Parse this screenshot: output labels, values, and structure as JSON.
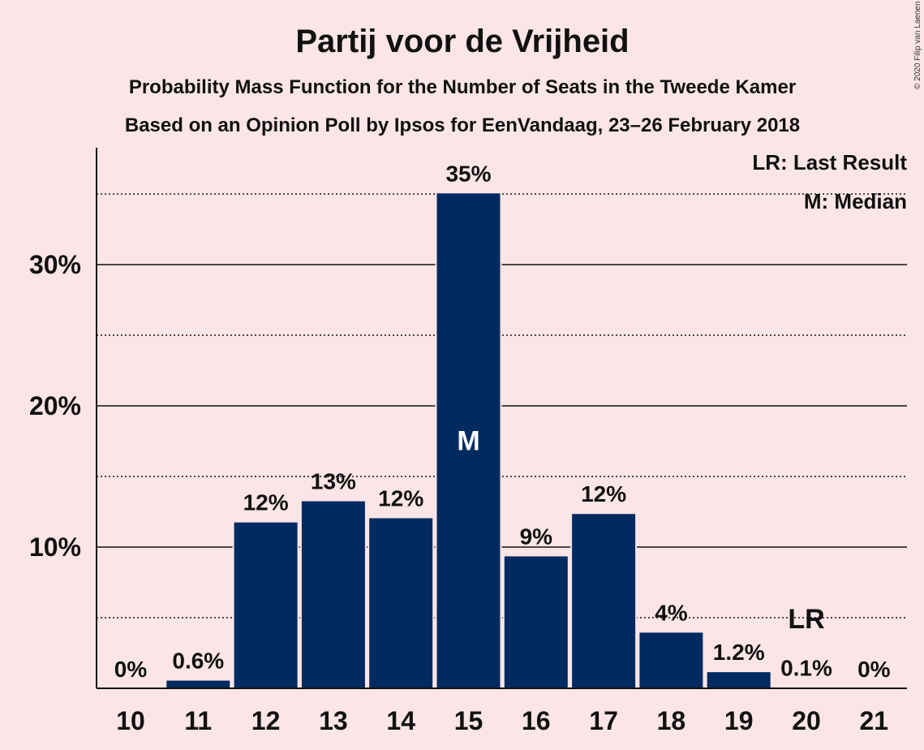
{
  "chart_data": {
    "type": "bar",
    "title": "Partij voor de Vrijheid",
    "subtitle": "Probability Mass Function for the Number of Seats in the Tweede Kamer",
    "subtitle2": "Based on an Opinion Poll by Ipsos for EenVandaag, 23–26 February 2018",
    "categories": [
      "10",
      "11",
      "12",
      "13",
      "14",
      "15",
      "16",
      "17",
      "18",
      "19",
      "20",
      "21"
    ],
    "values": [
      0,
      0.6,
      11.8,
      13.3,
      12.1,
      35.1,
      9.4,
      12.4,
      4.0,
      1.2,
      0.1,
      0
    ],
    "value_labels": [
      "0%",
      "0.6%",
      "12%",
      "13%",
      "12%",
      "35%",
      "9%",
      "12%",
      "4%",
      "1.2%",
      "0.1%",
      "0%"
    ],
    "y_ticks": [
      10,
      20,
      30
    ],
    "y_tick_labels": [
      "10%",
      "20%",
      "30%"
    ],
    "ylim": [
      0,
      38.2
    ],
    "median_index": 5,
    "median_marker": "M",
    "last_result_index": 10,
    "last_result_marker": "LR",
    "legend": [
      "LR: Last Result",
      "M: Median"
    ],
    "legend_position": "top-right",
    "bar_color": "#012a60",
    "background_color": "#fbe5e7",
    "copyright": "© 2020 Filip van Laenen"
  }
}
